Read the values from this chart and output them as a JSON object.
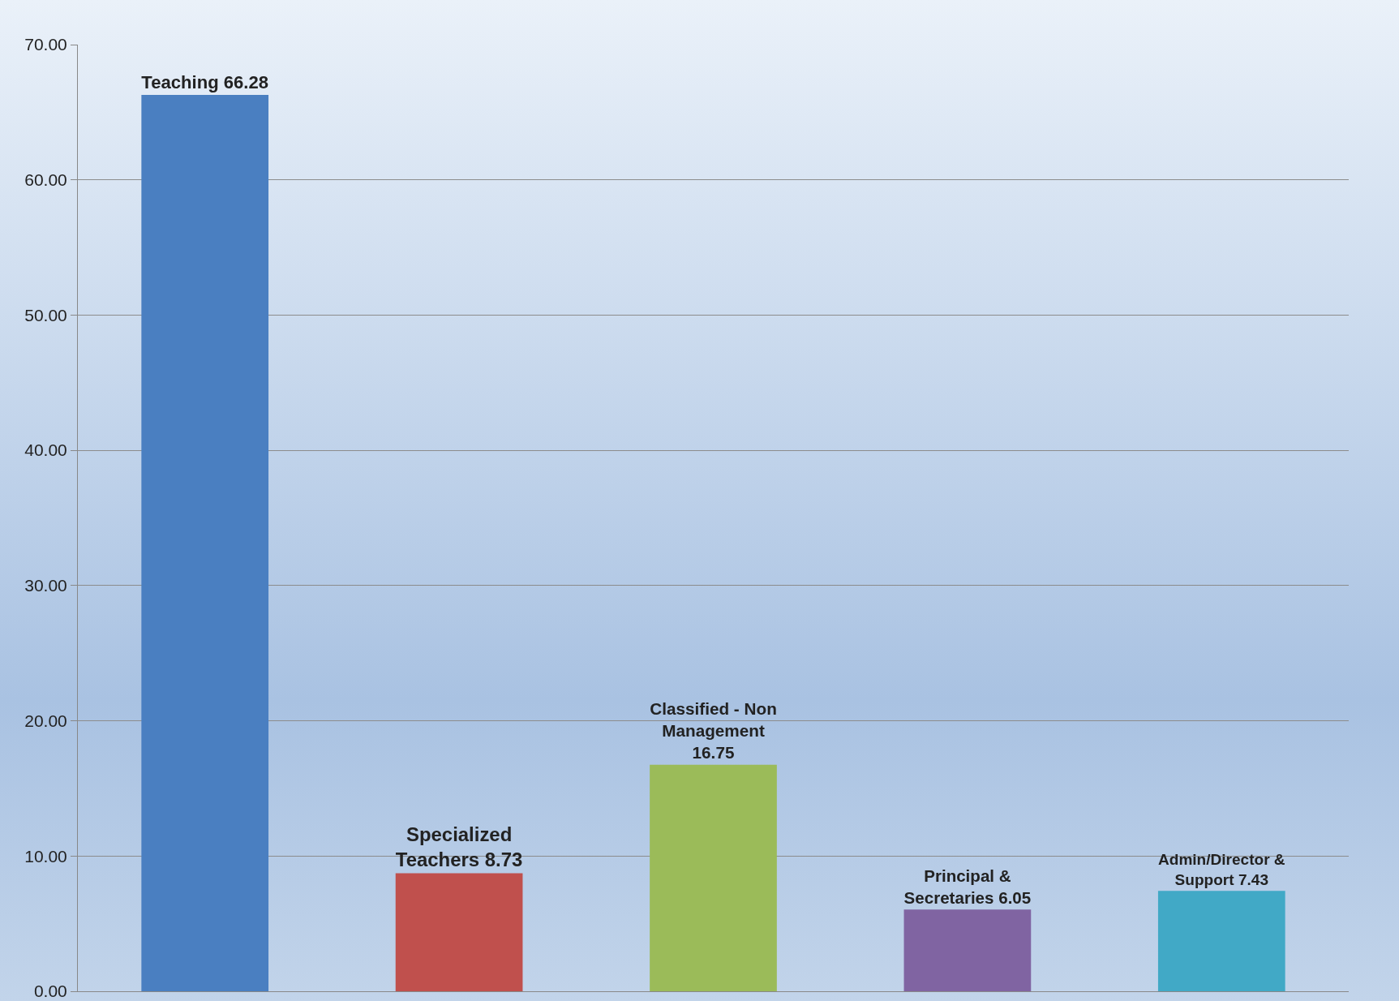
{
  "chart_data": {
    "type": "bar",
    "categories": [
      null,
      null,
      null,
      null,
      null
    ],
    "values": [
      66.28,
      8.73,
      16.75,
      6.05,
      7.43
    ],
    "colors": [
      "#4a7fc1",
      "#c0504d",
      "#9bbb59",
      "#8064a2",
      "#41a9c6"
    ],
    "value_labels": [
      "Teaching 66.28",
      "Specialized\nTeachers 8.73",
      "Classified - Non\nManagement\n16.75",
      "Principal &\nSecretaries 6.05",
      "Admin/Director &\nSupport 7.43"
    ],
    "ylim": [
      0,
      70
    ],
    "yticks": [
      {
        "value": 0,
        "label": "0.00"
      },
      {
        "value": 10,
        "label": "10.00"
      },
      {
        "value": 20,
        "label": "20.00"
      },
      {
        "value": 30,
        "label": "30.00"
      },
      {
        "value": 40,
        "label": "40.00"
      },
      {
        "value": 50,
        "label": "50.00"
      },
      {
        "value": 60,
        "label": "60.00"
      },
      {
        "value": 70,
        "label": "70.00"
      }
    ],
    "grid": "y",
    "tick_labels": "y"
  }
}
